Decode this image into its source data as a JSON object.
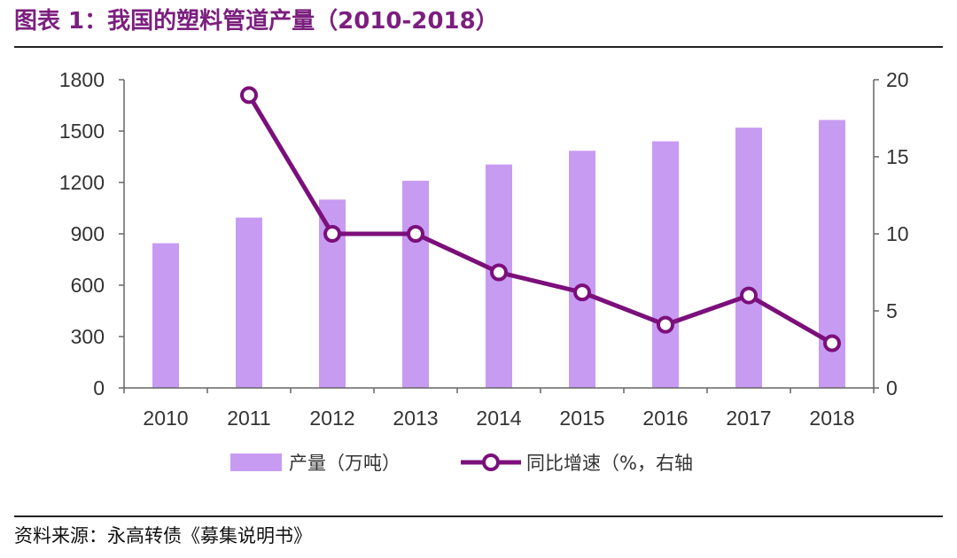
{
  "header": {
    "title": "图表 1：我国的塑料管道产量（2010-2018）"
  },
  "footer": {
    "source": "资料来源：永高转债《募集说明书》"
  },
  "colors": {
    "bar": "#c79bf2",
    "line": "#7b0f7b",
    "title": "#7b1f7e"
  },
  "chart_data": {
    "type": "bar",
    "categories": [
      "2010",
      "2011",
      "2012",
      "2013",
      "2014",
      "2015",
      "2016",
      "2017",
      "2018"
    ],
    "series": [
      {
        "name": "产量（万吨）",
        "type": "bar",
        "axis": "left",
        "values": [
          845,
          995,
          1100,
          1210,
          1305,
          1385,
          1440,
          1520,
          1565
        ]
      },
      {
        "name": "同比增速（%，右轴",
        "type": "line",
        "axis": "right",
        "values": [
          null,
          19.0,
          10.0,
          10.0,
          7.5,
          6.2,
          4.1,
          6.0,
          2.9
        ]
      }
    ],
    "y_left": {
      "ylim": [
        0,
        1800
      ],
      "ticks": [
        "0",
        "300",
        "600",
        "900",
        "1200",
        "1500",
        "1800"
      ]
    },
    "y_right": {
      "ylim": [
        0,
        20
      ],
      "ticks": [
        "0",
        "5",
        "10",
        "15",
        "20"
      ]
    },
    "grid": false,
    "legend": "bottom"
  }
}
